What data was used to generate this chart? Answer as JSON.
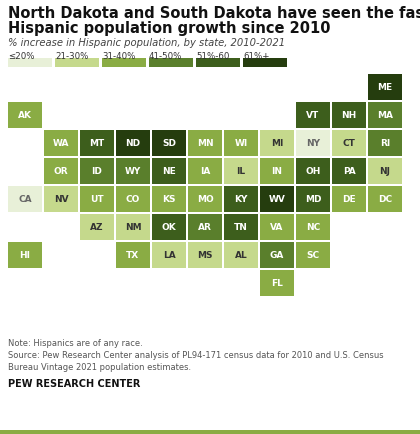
{
  "title_line1": "North Dakota and South Dakota have seen the fastest",
  "title_line2": "Hispanic population growth since 2010",
  "subtitle": "% increase in Hispanic population, by state, 2010-2021",
  "note": "Note: Hispanics are of any race.\nSource: Pew Research Center analysis of PL94-171 census data for 2010 and U.S. Census\nBureau Vintage 2021 population estimates.",
  "footer": "PEW RESEARCH CENTER",
  "legend_labels": [
    "≤20%",
    "21-30%",
    "31-40%",
    "41-50%",
    "51%-60",
    "61%+"
  ],
  "legend_colors": [
    "#e8f0d8",
    "#c5d98c",
    "#8aac44",
    "#5a7f2c",
    "#3d5e1c",
    "#253d0e"
  ],
  "background_color": "#ffffff",
  "bottom_bar_color": "#8aac44",
  "colors": {
    "<=20": "#e8f0d8",
    "21-30": "#c5d98c",
    "31-40": "#8aac44",
    "41-50": "#5a7f2c",
    "51-60": "#3d5e1c",
    "61+": "#253d0e"
  },
  "text_colors": {
    "<=20": "#666666",
    "21-30": "#333333",
    "31-40": "#ffffff",
    "41-50": "#ffffff",
    "51-60": "#ffffff",
    "61+": "#ffffff"
  },
  "states": {
    "AK": {
      "row": 1,
      "col": 0,
      "cat": "31-40"
    },
    "ME": {
      "row": 0,
      "col": 10,
      "cat": "61+"
    },
    "VT": {
      "row": 1,
      "col": 8,
      "cat": "51-60"
    },
    "NH": {
      "row": 1,
      "col": 9,
      "cat": "51-60"
    },
    "MA": {
      "row": 1,
      "col": 10,
      "cat": "41-50"
    },
    "WA": {
      "row": 2,
      "col": 1,
      "cat": "31-40"
    },
    "MT": {
      "row": 2,
      "col": 2,
      "cat": "51-60"
    },
    "ND": {
      "row": 2,
      "col": 3,
      "cat": "61+"
    },
    "SD": {
      "row": 2,
      "col": 4,
      "cat": "61+"
    },
    "MN": {
      "row": 2,
      "col": 5,
      "cat": "31-40"
    },
    "WI": {
      "row": 2,
      "col": 6,
      "cat": "31-40"
    },
    "MI": {
      "row": 2,
      "col": 7,
      "cat": "21-30"
    },
    "NY": {
      "row": 2,
      "col": 8,
      "cat": "<=20"
    },
    "CT": {
      "row": 2,
      "col": 9,
      "cat": "21-30"
    },
    "RI": {
      "row": 2,
      "col": 10,
      "cat": "41-50"
    },
    "OR": {
      "row": 3,
      "col": 1,
      "cat": "31-40"
    },
    "ID": {
      "row": 3,
      "col": 2,
      "cat": "41-50"
    },
    "WY": {
      "row": 3,
      "col": 3,
      "cat": "41-50"
    },
    "NE": {
      "row": 3,
      "col": 4,
      "cat": "51-60"
    },
    "IA": {
      "row": 3,
      "col": 5,
      "cat": "31-40"
    },
    "IL": {
      "row": 3,
      "col": 6,
      "cat": "21-30"
    },
    "IN": {
      "row": 3,
      "col": 7,
      "cat": "31-40"
    },
    "OH": {
      "row": 3,
      "col": 8,
      "cat": "51-60"
    },
    "PA": {
      "row": 3,
      "col": 9,
      "cat": "51-60"
    },
    "NJ": {
      "row": 3,
      "col": 10,
      "cat": "21-30"
    },
    "CA": {
      "row": 4,
      "col": 0,
      "cat": "<=20"
    },
    "NV": {
      "row": 4,
      "col": 1,
      "cat": "21-30"
    },
    "UT": {
      "row": 4,
      "col": 2,
      "cat": "31-40"
    },
    "CO": {
      "row": 4,
      "col": 3,
      "cat": "31-40"
    },
    "KS": {
      "row": 4,
      "col": 4,
      "cat": "31-40"
    },
    "MO": {
      "row": 4,
      "col": 5,
      "cat": "31-40"
    },
    "KY": {
      "row": 4,
      "col": 6,
      "cat": "51-60"
    },
    "WV": {
      "row": 4,
      "col": 7,
      "cat": "61+"
    },
    "MD": {
      "row": 4,
      "col": 8,
      "cat": "51-60"
    },
    "DE": {
      "row": 4,
      "col": 9,
      "cat": "31-40"
    },
    "DC": {
      "row": 4,
      "col": 10,
      "cat": "31-40"
    },
    "AZ": {
      "row": 5,
      "col": 2,
      "cat": "21-30"
    },
    "NM": {
      "row": 5,
      "col": 3,
      "cat": "21-30"
    },
    "OK": {
      "row": 5,
      "col": 4,
      "cat": "51-60"
    },
    "AR": {
      "row": 5,
      "col": 5,
      "cat": "41-50"
    },
    "TN": {
      "row": 5,
      "col": 6,
      "cat": "51-60"
    },
    "VA": {
      "row": 5,
      "col": 7,
      "cat": "31-40"
    },
    "NC": {
      "row": 5,
      "col": 8,
      "cat": "31-40"
    },
    "HI": {
      "row": 6,
      "col": 0,
      "cat": "31-40"
    },
    "TX": {
      "row": 6,
      "col": 3,
      "cat": "31-40"
    },
    "LA": {
      "row": 6,
      "col": 4,
      "cat": "21-30"
    },
    "MS": {
      "row": 6,
      "col": 5,
      "cat": "21-30"
    },
    "AL": {
      "row": 6,
      "col": 6,
      "cat": "21-30"
    },
    "GA": {
      "row": 6,
      "col": 7,
      "cat": "41-50"
    },
    "SC": {
      "row": 6,
      "col": 8,
      "cat": "31-40"
    },
    "FL": {
      "row": 7,
      "col": 7,
      "cat": "31-40"
    }
  }
}
